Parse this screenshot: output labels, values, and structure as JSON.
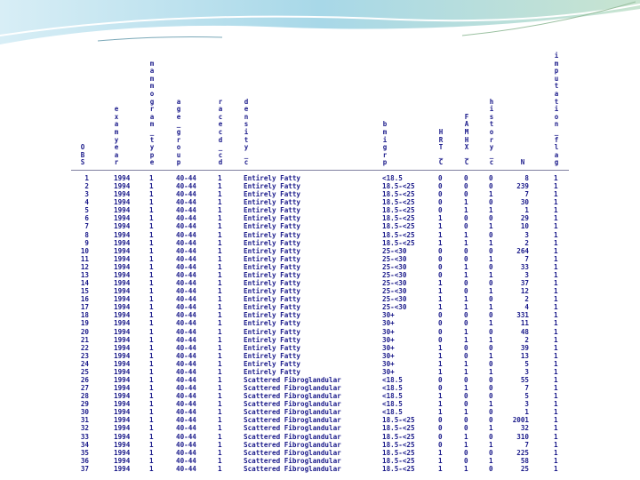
{
  "columns": [
    {
      "key": "obs",
      "header": "OBS"
    },
    {
      "key": "exam_year",
      "header": "examyear"
    },
    {
      "key": "mammogram_type",
      "header": "mammogram_type"
    },
    {
      "key": "age_group",
      "header": "age_group"
    },
    {
      "key": "race_cd",
      "header": "racecd_cd"
    },
    {
      "key": "density_c",
      "header": "density_c"
    },
    {
      "key": "bmi_grp",
      "header": "bmigrp"
    },
    {
      "key": "hrt_c",
      "header": "HRT_C"
    },
    {
      "key": "famhx_c",
      "header": "FAMHX_C"
    },
    {
      "key": "history_c",
      "header": "history_c"
    },
    {
      "key": "n",
      "header": "N"
    },
    {
      "key": "imputation_flag",
      "header": "imputation_flag"
    }
  ],
  "rows": [
    [
      "1",
      "1994",
      "1",
      "40-44",
      "1",
      "Entirely Fatty",
      "<18.5",
      "0",
      "0",
      "0",
      "8",
      "1"
    ],
    [
      "2",
      "1994",
      "1",
      "40-44",
      "1",
      "Entirely Fatty",
      "18.5-<25",
      "0",
      "0",
      "0",
      "239",
      "1"
    ],
    [
      "3",
      "1994",
      "1",
      "40-44",
      "1",
      "Entirely Fatty",
      "18.5-<25",
      "0",
      "0",
      "1",
      "7",
      "1"
    ],
    [
      "4",
      "1994",
      "1",
      "40-44",
      "1",
      "Entirely Fatty",
      "18.5-<25",
      "0",
      "1",
      "0",
      "30",
      "1"
    ],
    [
      "5",
      "1994",
      "1",
      "40-44",
      "1",
      "Entirely Fatty",
      "18.5-<25",
      "0",
      "1",
      "1",
      "1",
      "1"
    ],
    [
      "6",
      "1994",
      "1",
      "40-44",
      "1",
      "Entirely Fatty",
      "18.5-<25",
      "1",
      "0",
      "0",
      "29",
      "1"
    ],
    [
      "7",
      "1994",
      "1",
      "40-44",
      "1",
      "Entirely Fatty",
      "18.5-<25",
      "1",
      "0",
      "1",
      "10",
      "1"
    ],
    [
      "8",
      "1994",
      "1",
      "40-44",
      "1",
      "Entirely Fatty",
      "18.5-<25",
      "1",
      "1",
      "0",
      "3",
      "1"
    ],
    [
      "9",
      "1994",
      "1",
      "40-44",
      "1",
      "Entirely Fatty",
      "18.5-<25",
      "1",
      "1",
      "1",
      "2",
      "1"
    ],
    [
      "10",
      "1994",
      "1",
      "40-44",
      "1",
      "Entirely Fatty",
      "25-<30",
      "0",
      "0",
      "0",
      "264",
      "1"
    ],
    [
      "11",
      "1994",
      "1",
      "40-44",
      "1",
      "Entirely Fatty",
      "25-<30",
      "0",
      "0",
      "1",
      "7",
      "1"
    ],
    [
      "12",
      "1994",
      "1",
      "40-44",
      "1",
      "Entirely Fatty",
      "25-<30",
      "0",
      "1",
      "0",
      "33",
      "1"
    ],
    [
      "13",
      "1994",
      "1",
      "40-44",
      "1",
      "Entirely Fatty",
      "25-<30",
      "0",
      "1",
      "1",
      "3",
      "1"
    ],
    [
      "14",
      "1994",
      "1",
      "40-44",
      "1",
      "Entirely Fatty",
      "25-<30",
      "1",
      "0",
      "0",
      "37",
      "1"
    ],
    [
      "15",
      "1994",
      "1",
      "40-44",
      "1",
      "Entirely Fatty",
      "25-<30",
      "1",
      "0",
      "1",
      "12",
      "1"
    ],
    [
      "16",
      "1994",
      "1",
      "40-44",
      "1",
      "Entirely Fatty",
      "25-<30",
      "1",
      "1",
      "0",
      "2",
      "1"
    ],
    [
      "17",
      "1994",
      "1",
      "40-44",
      "1",
      "Entirely Fatty",
      "25-<30",
      "1",
      "1",
      "1",
      "4",
      "1"
    ],
    [
      "18",
      "1994",
      "1",
      "40-44",
      "1",
      "Entirely Fatty",
      "30+",
      "0",
      "0",
      "0",
      "331",
      "1"
    ],
    [
      "19",
      "1994",
      "1",
      "40-44",
      "1",
      "Entirely Fatty",
      "30+",
      "0",
      "0",
      "1",
      "11",
      "1"
    ],
    [
      "20",
      "1994",
      "1",
      "40-44",
      "1",
      "Entirely Fatty",
      "30+",
      "0",
      "1",
      "0",
      "48",
      "1"
    ],
    [
      "21",
      "1994",
      "1",
      "40-44",
      "1",
      "Entirely Fatty",
      "30+",
      "0",
      "1",
      "1",
      "2",
      "1"
    ],
    [
      "22",
      "1994",
      "1",
      "40-44",
      "1",
      "Entirely Fatty",
      "30+",
      "1",
      "0",
      "0",
      "39",
      "1"
    ],
    [
      "23",
      "1994",
      "1",
      "40-44",
      "1",
      "Entirely Fatty",
      "30+",
      "1",
      "0",
      "1",
      "13",
      "1"
    ],
    [
      "24",
      "1994",
      "1",
      "40-44",
      "1",
      "Entirely Fatty",
      "30+",
      "1",
      "1",
      "0",
      "5",
      "1"
    ],
    [
      "25",
      "1994",
      "1",
      "40-44",
      "1",
      "Entirely Fatty",
      "30+",
      "1",
      "1",
      "1",
      "3",
      "1"
    ],
    [
      "26",
      "1994",
      "1",
      "40-44",
      "1",
      "Scattered Fibroglandular",
      "<18.5",
      "0",
      "0",
      "0",
      "55",
      "1"
    ],
    [
      "27",
      "1994",
      "1",
      "40-44",
      "1",
      "Scattered Fibroglandular",
      "<18.5",
      "0",
      "1",
      "0",
      "7",
      "1"
    ],
    [
      "28",
      "1994",
      "1",
      "40-44",
      "1",
      "Scattered Fibroglandular",
      "<18.5",
      "1",
      "0",
      "0",
      "5",
      "1"
    ],
    [
      "29",
      "1994",
      "1",
      "40-44",
      "1",
      "Scattered Fibroglandular",
      "<18.5",
      "1",
      "0",
      "1",
      "3",
      "1"
    ],
    [
      "30",
      "1994",
      "1",
      "40-44",
      "1",
      "Scattered Fibroglandular",
      "<18.5",
      "1",
      "1",
      "0",
      "1",
      "1"
    ],
    [
      "31",
      "1994",
      "1",
      "40-44",
      "1",
      "Scattered Fibroglandular",
      "18.5-<25",
      "0",
      "0",
      "0",
      "2001",
      "1"
    ],
    [
      "32",
      "1994",
      "1",
      "40-44",
      "1",
      "Scattered Fibroglandular",
      "18.5-<25",
      "0",
      "0",
      "1",
      "32",
      "1"
    ],
    [
      "33",
      "1994",
      "1",
      "40-44",
      "1",
      "Scattered Fibroglandular",
      "18.5-<25",
      "0",
      "1",
      "0",
      "310",
      "1"
    ],
    [
      "34",
      "1994",
      "1",
      "40-44",
      "1",
      "Scattered Fibroglandular",
      "18.5-<25",
      "0",
      "1",
      "1",
      "7",
      "1"
    ],
    [
      "35",
      "1994",
      "1",
      "40-44",
      "1",
      "Scattered Fibroglandular",
      "18.5-<25",
      "1",
      "0",
      "0",
      "225",
      "1"
    ],
    [
      "36",
      "1994",
      "1",
      "40-44",
      "1",
      "Scattered Fibroglandular",
      "18.5-<25",
      "1",
      "0",
      "1",
      "58",
      "1"
    ],
    [
      "37",
      "1994",
      "1",
      "40-44",
      "1",
      "Scattered Fibroglandular",
      "18.5-<25",
      "1",
      "1",
      "0",
      "25",
      "1"
    ]
  ]
}
